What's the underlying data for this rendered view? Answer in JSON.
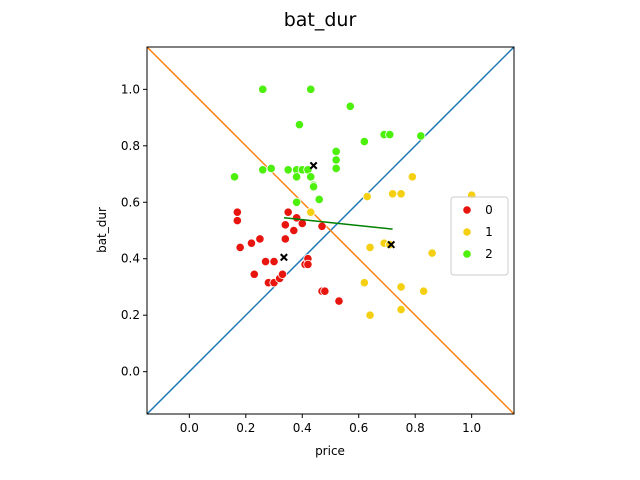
{
  "chart_data": {
    "type": "scatter",
    "title": "bat_dur",
    "xlabel": "price",
    "ylabel": "bat_dur",
    "xlim": [
      -0.15,
      1.15
    ],
    "ylim": [
      -0.15,
      1.15
    ],
    "xticks": [
      "0.0",
      "0.2",
      "0.4",
      "0.6",
      "0.8",
      "1.0"
    ],
    "yticks": [
      "0.0",
      "0.2",
      "0.4",
      "0.6",
      "0.8",
      "1.0"
    ],
    "grid": false,
    "legend_position": "center-right",
    "series": [
      {
        "name": "0",
        "color": "#e8140e",
        "points": [
          [
            0.17,
            0.565
          ],
          [
            0.17,
            0.535
          ],
          [
            0.18,
            0.44
          ],
          [
            0.22,
            0.455
          ],
          [
            0.23,
            0.345
          ],
          [
            0.25,
            0.47
          ],
          [
            0.27,
            0.39
          ],
          [
            0.28,
            0.315
          ],
          [
            0.3,
            0.39
          ],
          [
            0.3,
            0.315
          ],
          [
            0.32,
            0.33
          ],
          [
            0.33,
            0.345
          ],
          [
            0.34,
            0.47
          ],
          [
            0.34,
            0.52
          ],
          [
            0.35,
            0.565
          ],
          [
            0.37,
            0.5
          ],
          [
            0.38,
            0.545
          ],
          [
            0.4,
            0.525
          ],
          [
            0.41,
            0.38
          ],
          [
            0.42,
            0.4
          ],
          [
            0.42,
            0.38
          ],
          [
            0.47,
            0.285
          ],
          [
            0.48,
            0.285
          ],
          [
            0.47,
            0.515
          ],
          [
            0.53,
            0.25
          ]
        ]
      },
      {
        "name": "1",
        "color": "#f5d012",
        "points": [
          [
            0.43,
            0.565
          ],
          [
            0.63,
            0.62
          ],
          [
            0.64,
            0.44
          ],
          [
            0.62,
            0.315
          ],
          [
            0.64,
            0.2
          ],
          [
            0.69,
            0.455
          ],
          [
            0.71,
            0.45
          ],
          [
            0.72,
            0.63
          ],
          [
            0.75,
            0.63
          ],
          [
            0.75,
            0.3
          ],
          [
            0.75,
            0.22
          ],
          [
            0.79,
            0.69
          ],
          [
            0.83,
            0.285
          ],
          [
            0.86,
            0.42
          ],
          [
            1.0,
            0.625
          ]
        ]
      },
      {
        "name": "2",
        "color": "#4cf00b",
        "points": [
          [
            0.16,
            0.69
          ],
          [
            0.26,
            1.0
          ],
          [
            0.26,
            0.715
          ],
          [
            0.29,
            0.72
          ],
          [
            0.35,
            0.715
          ],
          [
            0.38,
            0.6
          ],
          [
            0.38,
            0.715
          ],
          [
            0.38,
            0.69
          ],
          [
            0.39,
            0.875
          ],
          [
            0.4,
            0.715
          ],
          [
            0.42,
            0.715
          ],
          [
            0.43,
            1.0
          ],
          [
            0.43,
            0.69
          ],
          [
            0.44,
            0.66
          ],
          [
            0.44,
            0.655
          ],
          [
            0.46,
            0.61
          ],
          [
            0.52,
            0.78
          ],
          [
            0.52,
            0.75
          ],
          [
            0.52,
            0.72
          ],
          [
            0.57,
            0.94
          ],
          [
            0.62,
            0.815
          ],
          [
            0.69,
            0.84
          ],
          [
            0.71,
            0.84
          ],
          [
            0.82,
            0.835
          ]
        ]
      }
    ],
    "centroids": [
      [
        0.335,
        0.405
      ],
      [
        0.715,
        0.45
      ],
      [
        0.44,
        0.73
      ]
    ],
    "diagonal_lines": [
      {
        "color": "#1f77b4",
        "from": [
          -0.15,
          -0.15
        ],
        "to": [
          1.15,
          1.15
        ]
      },
      {
        "color": "#ff7f0e",
        "from": [
          -0.15,
          1.15
        ],
        "to": [
          1.15,
          -0.15
        ]
      }
    ],
    "trend_segment": {
      "color": "#008000",
      "from": [
        0.335,
        0.545
      ],
      "to": [
        0.72,
        0.505
      ]
    }
  }
}
